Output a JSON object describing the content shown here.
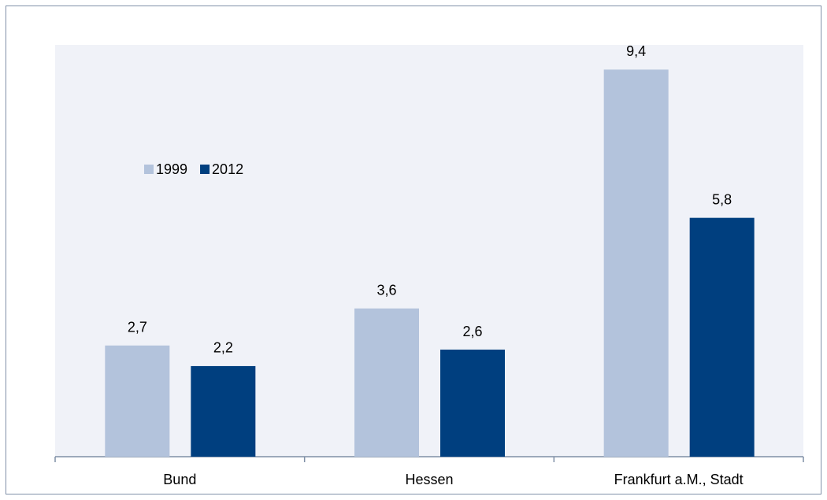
{
  "chart_data": {
    "type": "bar",
    "categories": [
      "Bund",
      "Hessen",
      "Frankfurt a.M., Stadt"
    ],
    "series": [
      {
        "name": "1999",
        "color": "#b3c3dc",
        "values": [
          2.7,
          3.6,
          9.4
        ],
        "value_labels": [
          "2,7",
          "3,6",
          "9,4"
        ]
      },
      {
        "name": "2012",
        "color": "#003f7f",
        "values": [
          2.2,
          2.6,
          5.8
        ],
        "value_labels": [
          "2,2",
          "2,6",
          "5,8"
        ]
      }
    ],
    "ylim": [
      0,
      10
    ]
  }
}
